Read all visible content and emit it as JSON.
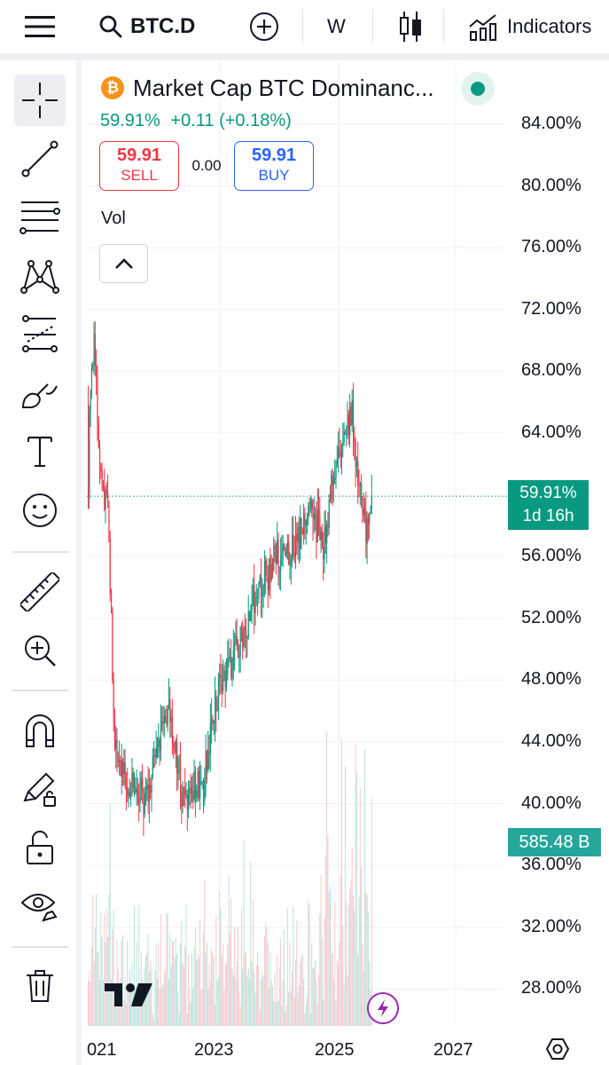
{
  "header": {
    "symbol": "BTC.D",
    "interval": "W",
    "indicators_label": "Indicators"
  },
  "legend": {
    "title": "Market Cap BTC Dominanc...",
    "btc_glyph": "₿",
    "price": "59.91%",
    "change": "+0.11",
    "change_pct": "(+0.18%)",
    "sell_price": "59.91",
    "sell_label": "SELL",
    "spread": "0.00",
    "buy_price": "59.91",
    "buy_label": "BUY",
    "volume_label": "Vol",
    "market_status_color": "#089981"
  },
  "price_axis": {
    "labels": [
      "84.00%",
      "80.00%",
      "76.00%",
      "72.00%",
      "68.00%",
      "64.00%",
      "56.00%",
      "52.00%",
      "48.00%",
      "44.00%",
      "40.00%",
      "36.00%",
      "32.00%",
      "28.00%"
    ],
    "current_price_tag": "59.91%",
    "countdown": "1d 16h",
    "volume_tag": "585.48 B"
  },
  "time_axis": {
    "labels": [
      "021",
      "2023",
      "2025",
      "2027"
    ]
  },
  "colors": {
    "up": "#089981",
    "down": "#f23645",
    "accent": "#2962ff"
  },
  "chart_data": {
    "type": "line",
    "x": [
      "2021-01",
      "2021-02",
      "2021-03",
      "2021-04",
      "2021-05",
      "2021-06",
      "2021-07",
      "2021-09",
      "2021-11",
      "2022-01",
      "2022-03",
      "2022-05",
      "2022-06",
      "2022-08",
      "2022-10",
      "2022-12",
      "2023-01",
      "2023-03",
      "2023-05",
      "2023-07",
      "2023-09",
      "2023-11",
      "2024-01",
      "2024-03",
      "2024-05",
      "2024-07",
      "2024-09",
      "2024-11",
      "2024-12",
      "2025-02",
      "2025-04",
      "2025-06",
      "2025-07",
      "2025-08",
      "2025-09",
      "2025-10"
    ],
    "series": [
      {
        "values": [
          66,
          70,
          63,
          60,
          58,
          44,
          42,
          41.5,
          40.5,
          40.5,
          44,
          46,
          44,
          40,
          41,
          41,
          44,
          47,
          49,
          50,
          52,
          54,
          55,
          56,
          56,
          57,
          59,
          58,
          56,
          61,
          64,
          65,
          62,
          58,
          58,
          59.91
        ]
      }
    ],
    "ylim": [
      26,
      86
    ],
    "grid": true
  }
}
